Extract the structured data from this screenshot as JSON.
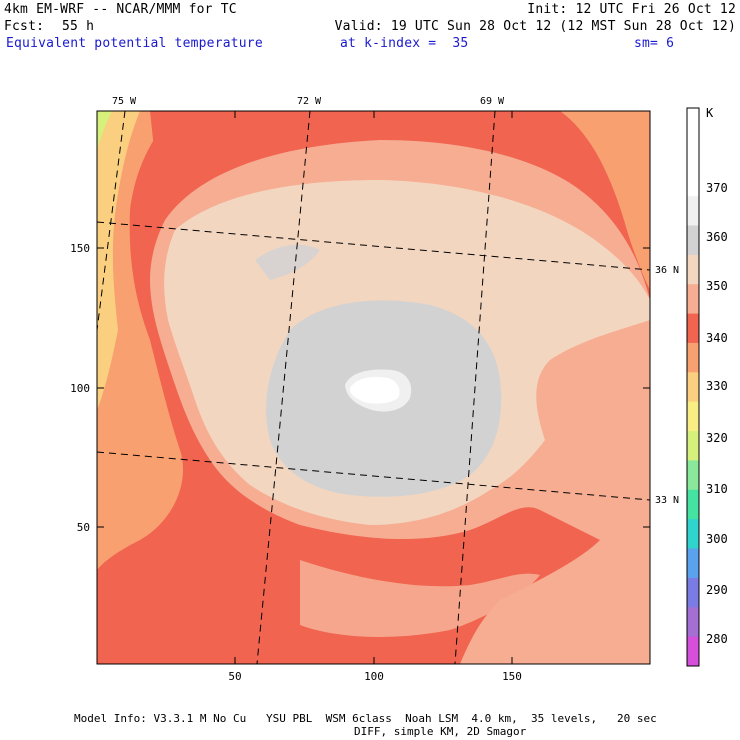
{
  "header": {
    "model": "4km EM-WRF -- NCAR/MMM for TC",
    "init": "Init: 12 UTC Fri 26 Oct 12",
    "fcst_label": "Fcst:",
    "fcst_value": "55 h",
    "valid": "Valid: 19 UTC Sun 28 Oct 12 (12 MST Sun 28 Oct 12)",
    "field": "Equivalent potential temperature",
    "level": "at k-index =  35",
    "smoothing": "sm= 6"
  },
  "map": {
    "x_ticks": [
      "50",
      "100",
      "150"
    ],
    "y_ticks": [
      "50",
      "100",
      "150"
    ],
    "lon_labels": [
      "75 W",
      "72 W",
      "69 W"
    ],
    "lat_labels": [
      "36 N",
      "33 N"
    ]
  },
  "colorbar": {
    "unit": "K",
    "labels": [
      "370",
      "360",
      "350",
      "340",
      "330",
      "320",
      "310",
      "300",
      "290",
      "280"
    ],
    "colors": [
      "#ffffff",
      "#ffffff",
      "#ffffff",
      "#f0f0f0",
      "#d2d2d2",
      "#f3d6c0",
      "#f6ad92",
      "#f06450",
      "#f8a070",
      "#fad080",
      "#f8ee84",
      "#d6f07c",
      "#8ae89a",
      "#46e2a2",
      "#30d4cc",
      "#5aa2ee",
      "#7a7ce4",
      "#a46ed2",
      "#d64edc"
    ]
  },
  "footer": {
    "line1": "Model Info: V3.3.1 M No Cu   YSU PBL  WSM 6class  Noah LSM  4.0 km,  35 levels,   20 sec",
    "line2": "DIFF, simple KM, 2D Smagor"
  }
}
